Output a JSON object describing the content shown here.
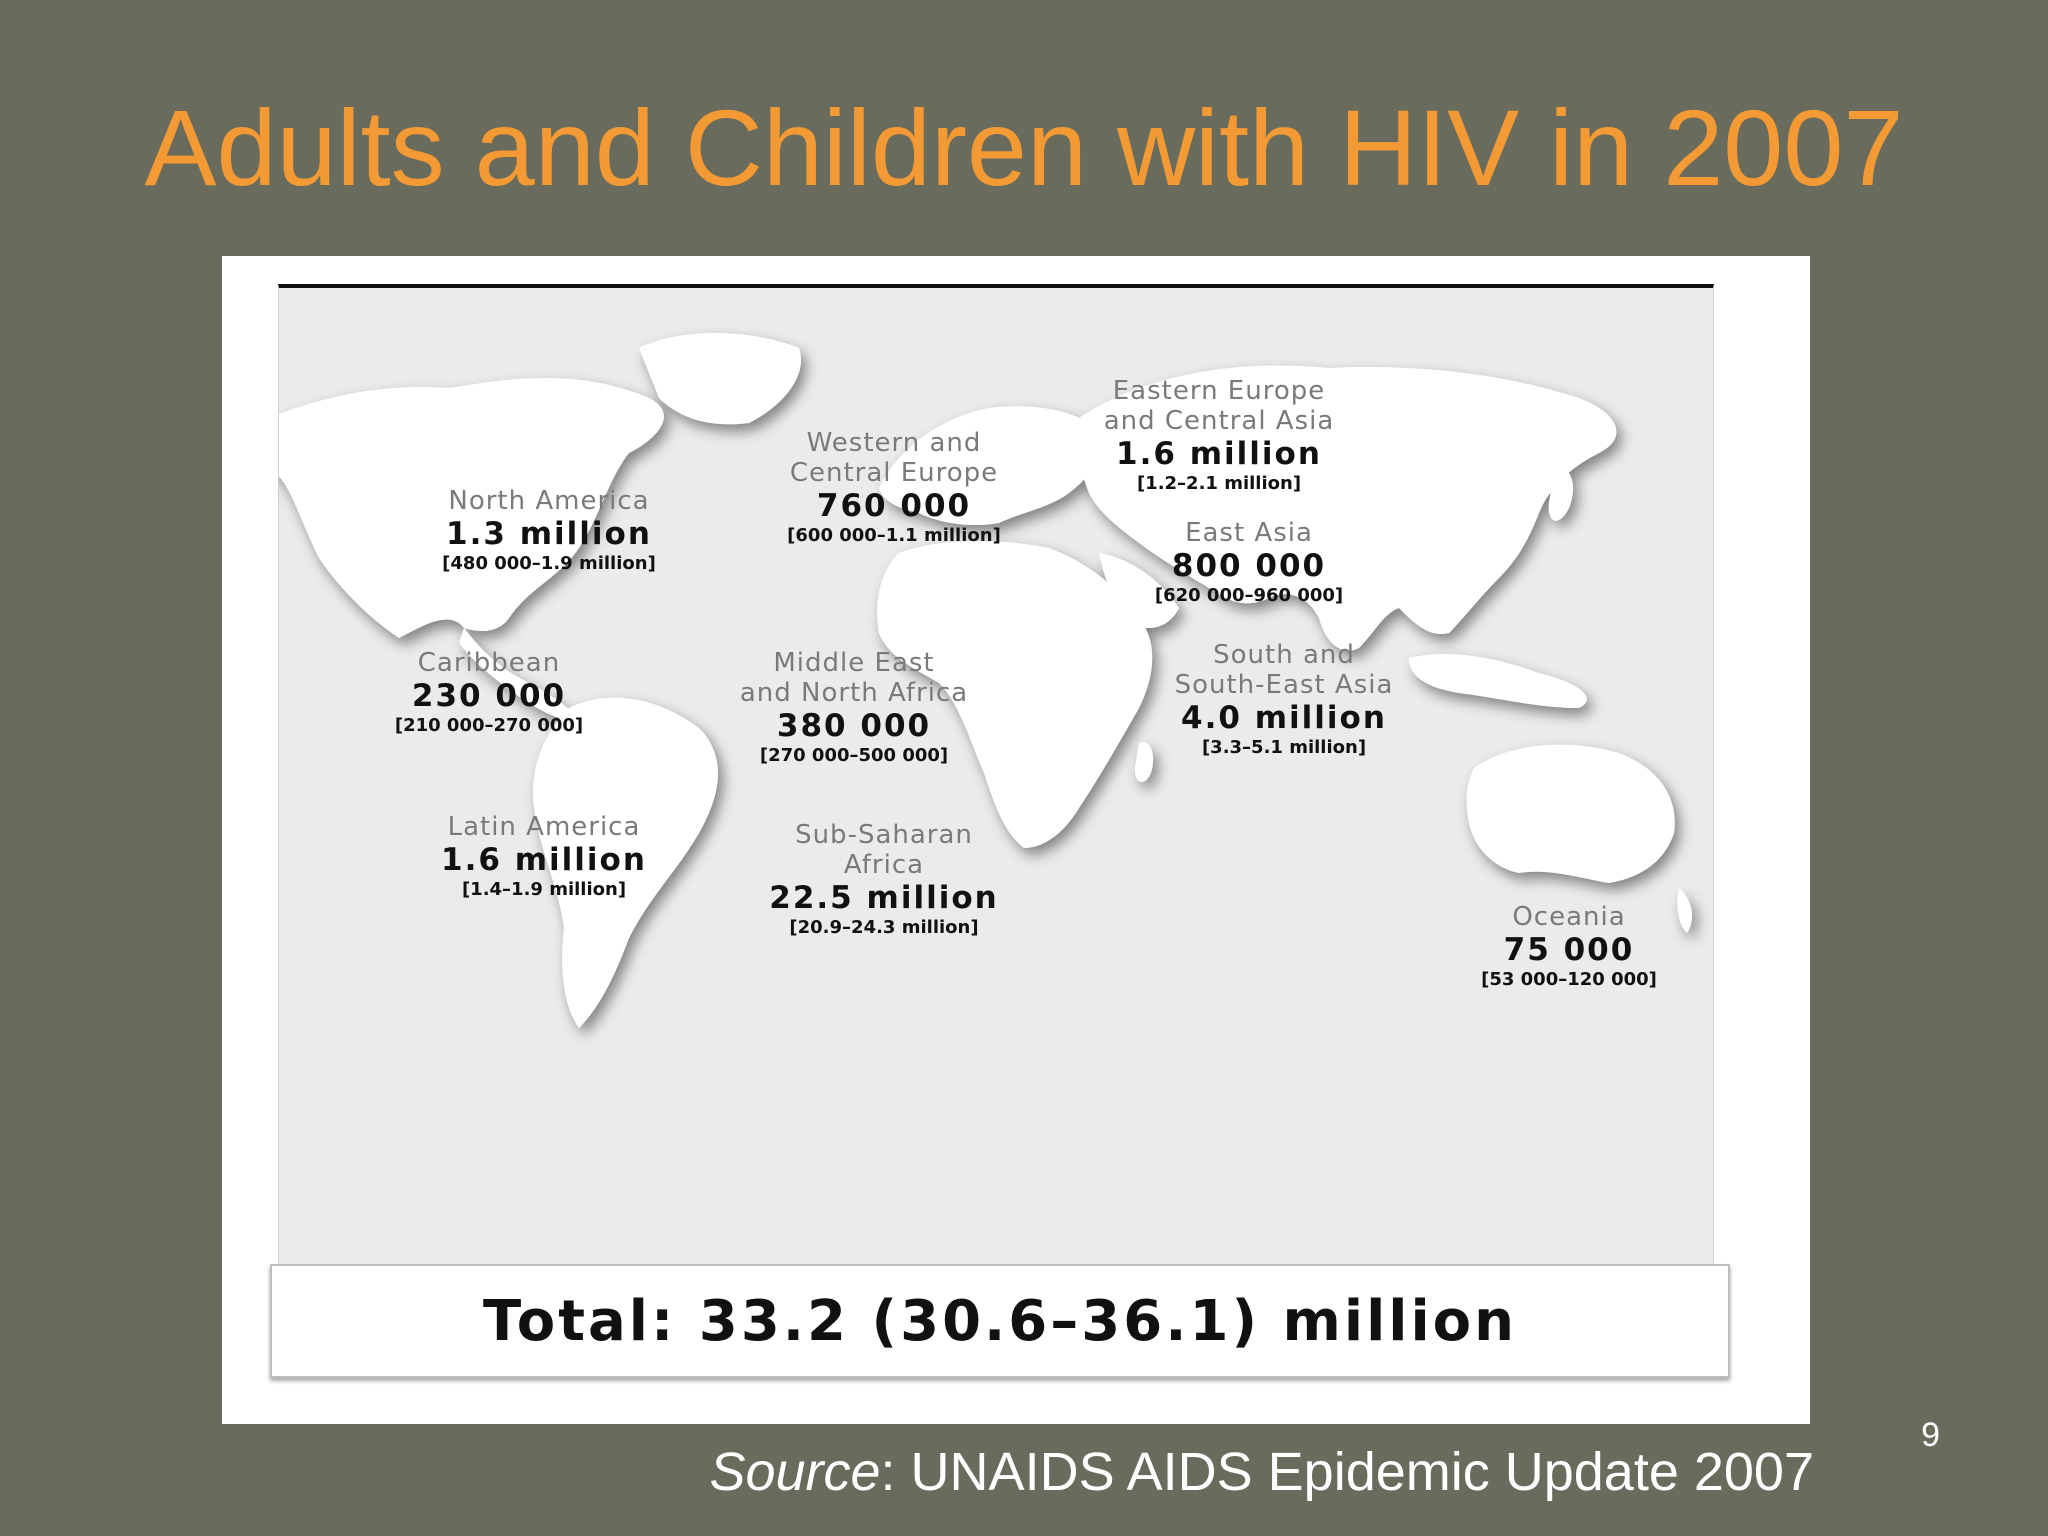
{
  "slide": {
    "title": "Adults and Children with HIV in 2007",
    "page_number": "9"
  },
  "map": {
    "regions": [
      {
        "id": "north-america",
        "name_line1": "North America",
        "name_line2": "",
        "value": "1.3 million",
        "range": "[480 000–1.9 million]"
      },
      {
        "id": "caribbean",
        "name_line1": "Caribbean",
        "name_line2": "",
        "value": "230 000",
        "range": "[210 000–270 000]"
      },
      {
        "id": "latin-america",
        "name_line1": "Latin America",
        "name_line2": "",
        "value": "1.6 million",
        "range": "[1.4–1.9 million]"
      },
      {
        "id": "western-central-europe",
        "name_line1": "Western and",
        "name_line2": "Central Europe",
        "value": "760 000",
        "range": "[600 000–1.1 million]"
      },
      {
        "id": "middle-east-north-africa",
        "name_line1": "Middle East",
        "name_line2": "and North Africa",
        "value": "380 000",
        "range": "[270 000–500 000]"
      },
      {
        "id": "sub-saharan-africa",
        "name_line1": "Sub-Saharan",
        "name_line2": "Africa",
        "value": "22.5 million",
        "range": "[20.9–24.3 million]"
      },
      {
        "id": "eastern-europe-central-asia",
        "name_line1": "Eastern Europe",
        "name_line2": "and Central Asia",
        "value": "1.6 million",
        "range": "[1.2–2.1 million]"
      },
      {
        "id": "east-asia",
        "name_line1": "East Asia",
        "name_line2": "",
        "value": "800 000",
        "range": "[620 000–960 000]"
      },
      {
        "id": "south-south-east-asia",
        "name_line1": "South and",
        "name_line2": "South-East Asia",
        "value": "4.0 million",
        "range": "[3.3–5.1 million]"
      },
      {
        "id": "oceania",
        "name_line1": "Oceania",
        "name_line2": "",
        "value": "75 000",
        "range": "[53 000–120 000]"
      }
    ],
    "total": "Total: 33.2 (30.6–36.1) million"
  },
  "source": {
    "label": "Source",
    "text": ": UNAIDS AIDS Epidemic Update 2007"
  }
}
